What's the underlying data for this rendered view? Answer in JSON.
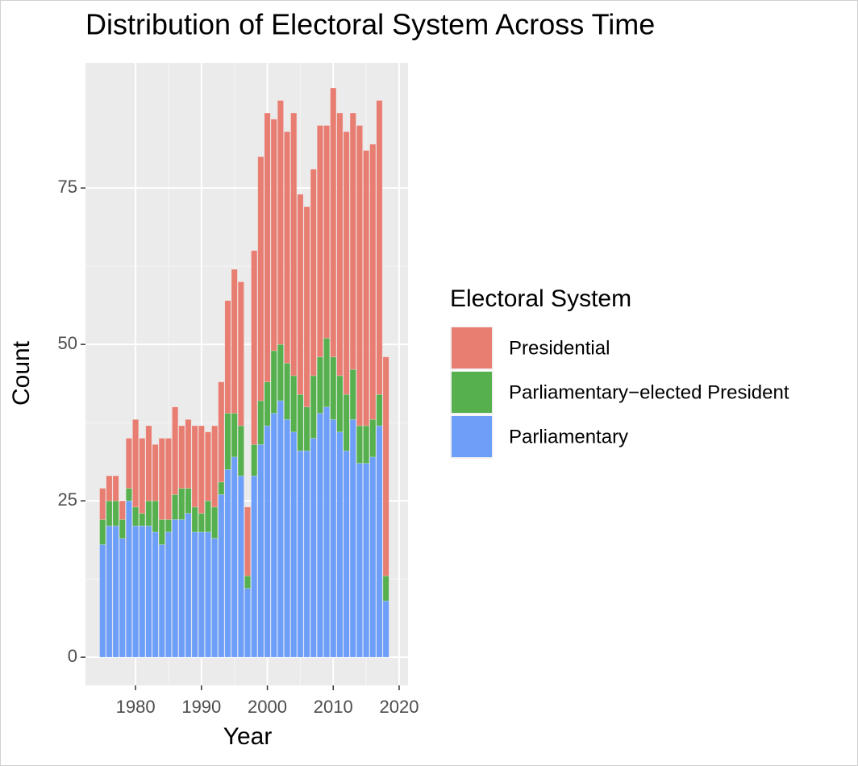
{
  "chart_data": {
    "type": "stacked_bar",
    "title": "Distribution of Electoral System Across Time",
    "x_label": "Year",
    "y_label": "Count",
    "legend_title": "Electoral System",
    "x": [
      1975,
      1976,
      1977,
      1978,
      1979,
      1980,
      1981,
      1982,
      1983,
      1984,
      1985,
      1986,
      1987,
      1988,
      1989,
      1990,
      1991,
      1992,
      1993,
      1994,
      1995,
      1996,
      1997,
      1998,
      1999,
      2000,
      2001,
      2002,
      2003,
      2004,
      2005,
      2006,
      2007,
      2008,
      2009,
      2010,
      2011,
      2012,
      2013,
      2014,
      2015,
      2016,
      2017,
      2018
    ],
    "series": [
      {
        "name": "Parliamentary",
        "color": "#6D9EF8",
        "values": [
          18,
          21,
          21,
          19,
          25,
          21,
          21,
          21,
          20,
          18,
          20,
          22,
          22,
          23,
          20,
          20,
          20,
          19,
          26,
          30,
          32,
          29,
          11,
          29,
          34,
          37,
          39,
          41,
          38,
          36,
          33,
          33,
          35,
          39,
          40,
          38,
          36,
          33,
          38,
          31,
          31,
          32,
          37,
          9
        ]
      },
      {
        "name": "Parliamentary−elected President",
        "color": "#56B04D",
        "values": [
          4,
          4,
          4,
          3,
          2,
          3,
          2,
          4,
          5,
          4,
          2,
          4,
          5,
          4,
          4,
          3,
          5,
          5,
          2,
          9,
          7,
          8,
          2,
          5,
          7,
          7,
          10,
          9,
          9,
          9,
          9,
          7,
          10,
          9,
          11,
          10,
          9,
          9,
          8,
          6,
          6,
          6,
          5,
          4
        ]
      },
      {
        "name": "Presidential",
        "color": "#E87D72",
        "values": [
          5,
          4,
          4,
          3,
          8,
          14,
          12,
          12,
          9,
          13,
          13,
          14,
          10,
          11,
          13,
          14,
          11,
          13,
          16,
          18,
          23,
          23,
          11,
          31,
          39,
          43,
          37,
          39,
          37,
          42,
          32,
          32,
          33,
          37,
          34,
          43,
          42,
          42,
          41,
          48,
          44,
          44,
          47,
          35
        ]
      }
    ],
    "xlim": [
      1972.4,
      2021.35
    ],
    "xticks": [
      1980,
      1990,
      2000,
      2010,
      2020
    ],
    "ylim": [
      -4.5,
      95
    ],
    "yticks": [
      0,
      25,
      50,
      75
    ],
    "grid": true,
    "legend": "right"
  }
}
